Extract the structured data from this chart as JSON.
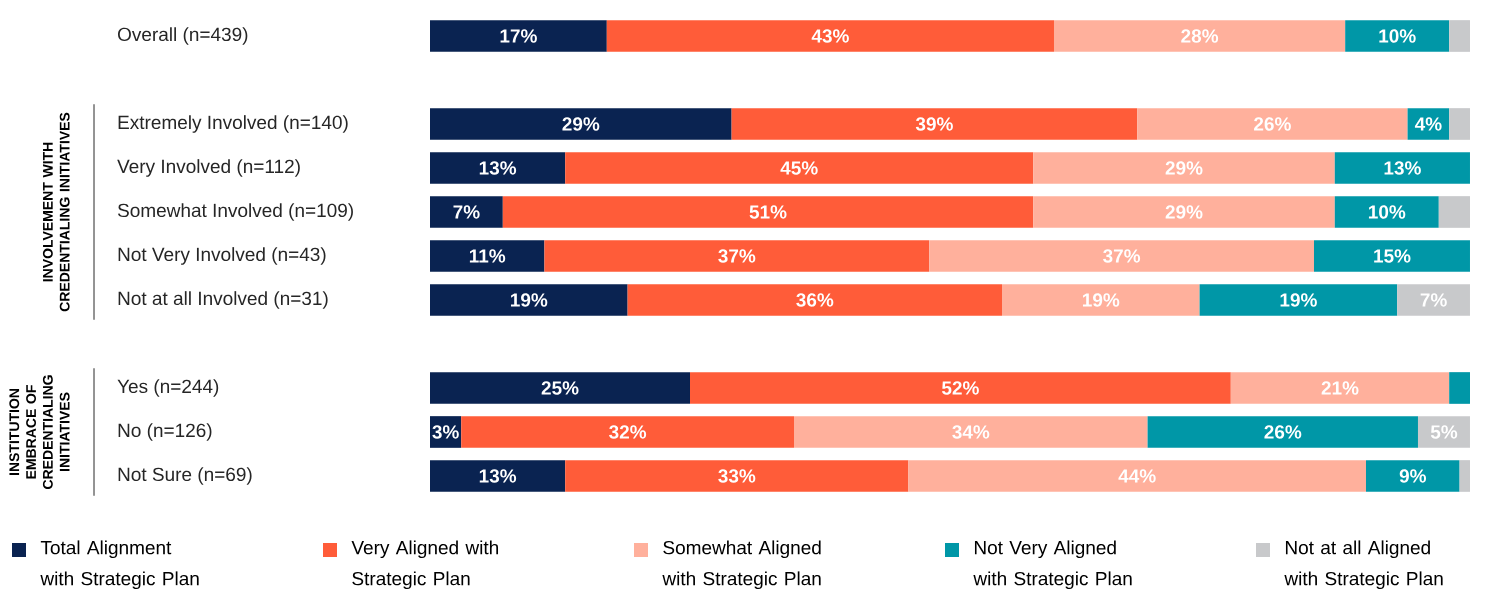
{
  "chart_data": {
    "type": "bar",
    "orientation": "horizontal",
    "stacked": true,
    "legend": "bottom",
    "tick_labels": "y",
    "xlim": [
      0,
      100
    ],
    "categories": [
      "Overall (n=439)",
      null,
      "Extremely Involved (n=140)",
      "Very Involved (n=112)",
      "Somewhat Involved (n=109)",
      "Not Very Involved (n=43)",
      "Not at all Involved (n=31)",
      null,
      "Yes (n=244)",
      "No (n=126)",
      "Not Sure (n=69)"
    ],
    "series": [
      {
        "name": "Total Alignment with Strategic Plan",
        "color": "#0a2351",
        "values": [
          17,
          null,
          29,
          13,
          7,
          11,
          19,
          null,
          25,
          3,
          13
        ],
        "value_labels": [
          "17%",
          null,
          "29%",
          "13%",
          "7%",
          "11%",
          "19%",
          null,
          "25%",
          "3%",
          "13%"
        ]
      },
      {
        "name": "Very Aligned with Strategic Plan",
        "color": "#ff5c39",
        "values": [
          43,
          null,
          39,
          45,
          51,
          37,
          36,
          null,
          52,
          32,
          33
        ],
        "value_labels": [
          "43%",
          null,
          "39%",
          "45%",
          "51%",
          "37%",
          "36%",
          null,
          "52%",
          "32%",
          "33%"
        ]
      },
      {
        "name": "Somewhat Aligned with Strategic Plan",
        "color": "#ffb09c",
        "values": [
          28,
          null,
          26,
          29,
          29,
          37,
          19,
          null,
          21,
          34,
          44
        ],
        "value_labels": [
          "28%",
          null,
          "26%",
          "29%",
          "29%",
          "37%",
          "19%",
          null,
          "21%",
          "34%",
          "44%"
        ]
      },
      {
        "name": "Not Very Aligned with Strategic Plan",
        "color": "#0097a7",
        "values": [
          10,
          null,
          4,
          13,
          10,
          15,
          19,
          null,
          2,
          26,
          9
        ],
        "value_labels": [
          "10%",
          null,
          "4%",
          "13%",
          "10%",
          "15%",
          "19%",
          null,
          null,
          "26%",
          "9%"
        ]
      },
      {
        "name": "Not at all Aligned with Strategic Plan",
        "color": "#c8c9cb",
        "values": [
          2,
          null,
          2,
          null,
          3,
          null,
          7,
          null,
          null,
          5,
          1
        ],
        "value_labels": [
          null,
          null,
          null,
          null,
          null,
          null,
          "7%",
          null,
          null,
          "5%",
          null
        ]
      }
    ],
    "annotations": [
      "INVOLVEMENT WITH CREDENTIALING INITIATIVES",
      "INSTITUTION EMBRACE OF CREDENTIALING INITIATIVES"
    ]
  }
}
